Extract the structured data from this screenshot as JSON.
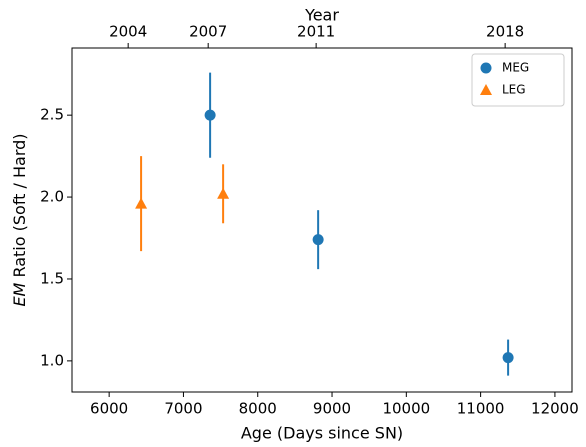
{
  "chart_data": {
    "type": "scatter",
    "x_label": "Age (Days since SN)",
    "y_label_italic": "EM",
    "y_label": "Ratio (Soft / Hard)",
    "x2_label": "Year",
    "xlim": [
      5500,
      12230
    ],
    "ylim": [
      0.81,
      2.91
    ],
    "xticks": [
      6000,
      7000,
      8000,
      9000,
      10000,
      11000,
      12000
    ],
    "yticks": [
      {
        "value": 1.0,
        "label": "1.0"
      },
      {
        "value": 1.5,
        "label": "1.5"
      },
      {
        "value": 2.0,
        "label": "2.0"
      },
      {
        "value": 2.5,
        "label": "2.5"
      }
    ],
    "x2ticks": [
      {
        "value": 6256,
        "label": "2004"
      },
      {
        "value": 7333,
        "label": "2007"
      },
      {
        "value": 8786,
        "label": "2011"
      },
      {
        "value": 11330,
        "label": "2018"
      }
    ],
    "legend": "upper right",
    "series": [
      {
        "name": "MEG",
        "color": "#1f77b4",
        "marker": "circle",
        "x": [
          7359,
          8813,
          11370
        ],
        "values": [
          2.5,
          1.74,
          1.02
        ],
        "errors": [
          0.26,
          0.18,
          0.11
        ]
      },
      {
        "name": "LEG",
        "color": "#ff7f0e",
        "marker": "triangle",
        "x": [
          6430,
          7534
        ],
        "values": [
          1.96,
          2.02
        ],
        "errors": [
          0.29,
          0.18
        ]
      }
    ]
  }
}
